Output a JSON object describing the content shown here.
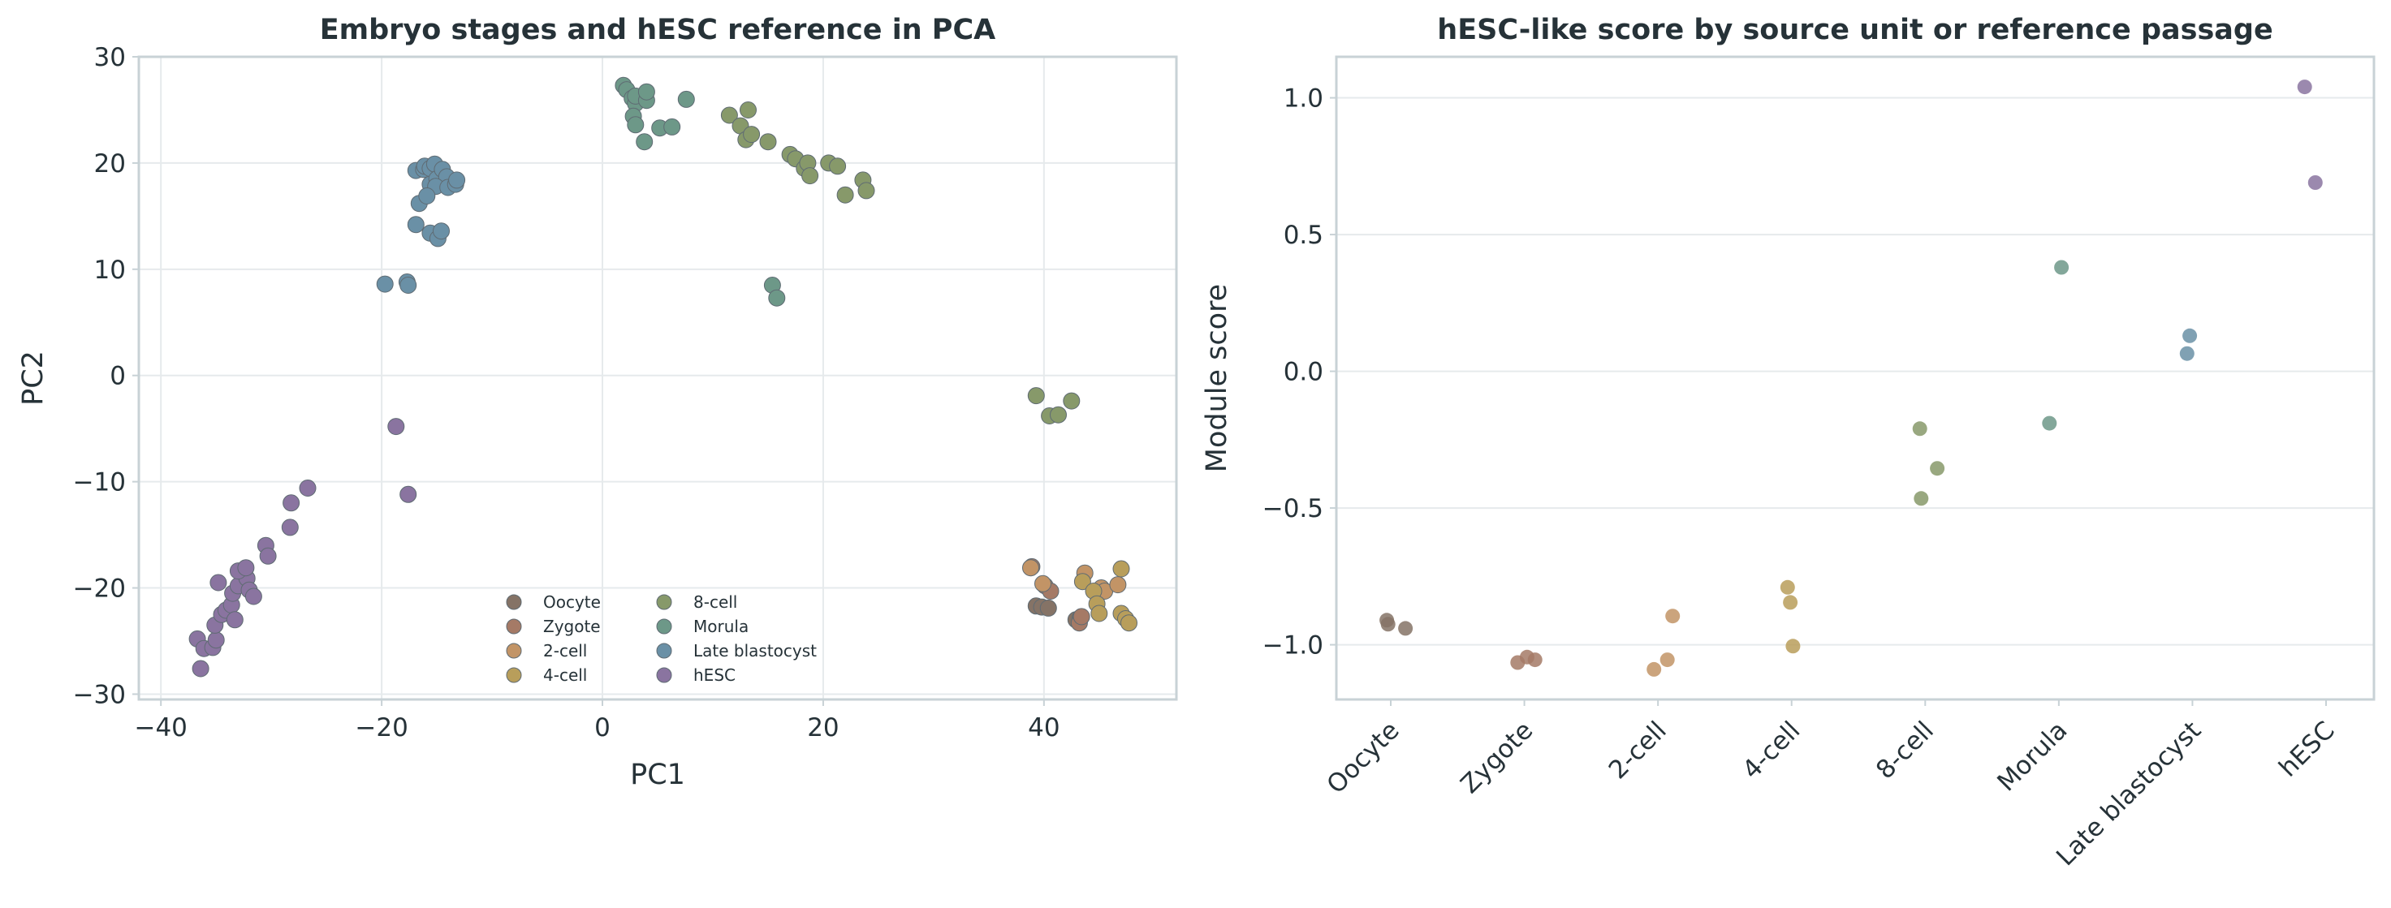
{
  "chart_data": [
    {
      "type": "scatter",
      "title": "Embryo stages and hESC reference in PCA",
      "xlabel": "PC1",
      "ylabel": "PC2",
      "xlim": [
        -42,
        52
      ],
      "ylim": [
        -30.5,
        30
      ],
      "xticks": [
        -40,
        -20,
        0,
        20,
        40
      ],
      "yticks": [
        -30,
        -20,
        -10,
        0,
        10,
        20,
        30
      ],
      "xtick_labels": [
        "−40",
        "−20",
        "0",
        "20",
        "40"
      ],
      "ytick_labels": [
        "−30",
        "−20",
        "−10",
        "0",
        "10",
        "20",
        "30"
      ],
      "grid": true,
      "legend_position": "lower-center",
      "series": [
        {
          "name": "Oocyte",
          "color": "#857366",
          "points": [
            [
              39.3,
              -21.7
            ],
            [
              39.8,
              -21.8
            ],
            [
              40.4,
              -21.9
            ],
            [
              42.9,
              -23
            ],
            [
              43.3,
              -22.8
            ]
          ]
        },
        {
          "name": "Zygote",
          "color": "#a57a66",
          "points": [
            [
              38.9,
              -18
            ],
            [
              40.1,
              -19.8
            ],
            [
              40.6,
              -20.3
            ],
            [
              43.2,
              -23.3
            ],
            [
              43.4,
              -22.7
            ]
          ]
        },
        {
          "name": "2-cell",
          "color": "#c29466",
          "points": [
            [
              38.8,
              -18.1
            ],
            [
              39.9,
              -19.6
            ],
            [
              43.7,
              -18.6
            ],
            [
              45.2,
              -20
            ],
            [
              45.5,
              -20.3
            ],
            [
              46.7,
              -19.7
            ]
          ]
        },
        {
          "name": "4-cell",
          "color": "#b89e5b",
          "points": [
            [
              43.5,
              -19.4
            ],
            [
              44.5,
              -20.3
            ],
            [
              44.8,
              -21.5
            ],
            [
              45,
              -22.4
            ],
            [
              47,
              -18.2
            ],
            [
              47,
              -22.4
            ],
            [
              47.4,
              -22.9
            ],
            [
              47.7,
              -23.3
            ]
          ]
        },
        {
          "name": "8-cell",
          "color": "#87996a",
          "points": [
            [
              39.3,
              -1.9
            ],
            [
              40.5,
              -3.8
            ],
            [
              41.3,
              -3.7
            ],
            [
              42.5,
              -2.4
            ],
            [
              11.5,
              24.5
            ],
            [
              12.5,
              23.5
            ],
            [
              13,
              22.2
            ],
            [
              13.5,
              22.7
            ],
            [
              13.2,
              25
            ],
            [
              15,
              22
            ],
            [
              17,
              20.8
            ],
            [
              17.5,
              20.4
            ],
            [
              18.3,
              19.5
            ],
            [
              18.6,
              20
            ],
            [
              18.8,
              18.8
            ],
            [
              20.5,
              20
            ],
            [
              21.3,
              19.7
            ],
            [
              22,
              17
            ],
            [
              23.6,
              18.4
            ],
            [
              23.9,
              17.4
            ]
          ]
        },
        {
          "name": "Morula",
          "color": "#6d9888",
          "points": [
            [
              1.9,
              27.3
            ],
            [
              2.2,
              26.9
            ],
            [
              2.7,
              26.1
            ],
            [
              3,
              25.6
            ],
            [
              3,
              26.3
            ],
            [
              2.8,
              24.4
            ],
            [
              3,
              23.6
            ],
            [
              4,
              25.9
            ],
            [
              4,
              26.7
            ],
            [
              3.8,
              22
            ],
            [
              5.2,
              23.3
            ],
            [
              6.3,
              23.4
            ],
            [
              7.6,
              26
            ],
            [
              15.4,
              8.5
            ],
            [
              15.8,
              7.3
            ]
          ]
        },
        {
          "name": "Late blastocyst",
          "color": "#6a90a6",
          "points": [
            [
              -19.7,
              8.6
            ],
            [
              -17.7,
              8.8
            ],
            [
              -17.6,
              8.5
            ],
            [
              -16.9,
              19.3
            ],
            [
              -16.2,
              19.4
            ],
            [
              -16.1,
              19.7
            ],
            [
              -15.6,
              19.5
            ],
            [
              -15.2,
              19.9
            ],
            [
              -15.6,
              18
            ],
            [
              -15,
              18.5
            ],
            [
              -14.5,
              19.4
            ],
            [
              -14.1,
              18.7
            ],
            [
              -15.1,
              17.8
            ],
            [
              -14,
              17.7
            ],
            [
              -13.3,
              18
            ],
            [
              -13.2,
              18.4
            ],
            [
              -16.6,
              16.2
            ],
            [
              -15.9,
              16.9
            ],
            [
              -16.9,
              14.2
            ],
            [
              -15.6,
              13.4
            ],
            [
              -14.9,
              12.9
            ],
            [
              -14.6,
              13.6
            ]
          ]
        },
        {
          "name": "hESC",
          "color": "#8a74a0",
          "points": [
            [
              -18.7,
              -4.8
            ],
            [
              -17.6,
              -11.2
            ],
            [
              -36.7,
              -24.8
            ],
            [
              -36.4,
              -27.6
            ],
            [
              -36.1,
              -25.7
            ],
            [
              -35.3,
              -25.6
            ],
            [
              -35,
              -24.9
            ],
            [
              -35.1,
              -23.5
            ],
            [
              -34.5,
              -22.5
            ],
            [
              -34.1,
              -22.1
            ],
            [
              -33.6,
              -21.6
            ],
            [
              -34.8,
              -19.5
            ],
            [
              -33.5,
              -20.5
            ],
            [
              -33,
              -19.8
            ],
            [
              -32.2,
              -19.1
            ],
            [
              -33,
              -18.4
            ],
            [
              -32.3,
              -18.1
            ],
            [
              -32,
              -20.2
            ],
            [
              -31.6,
              -20.8
            ],
            [
              -33.3,
              -23
            ],
            [
              -30.5,
              -16
            ],
            [
              -30.3,
              -17
            ],
            [
              -28.3,
              -14.3
            ],
            [
              -28.2,
              -12
            ],
            [
              -26.7,
              -10.6
            ]
          ]
        }
      ]
    },
    {
      "type": "scatter",
      "title": "hESC-like score by source unit or reference passage",
      "xlabel": "",
      "ylabel": "Module score",
      "categories": [
        "Oocyte",
        "Zygote",
        "2-cell",
        "4-cell",
        "8-cell",
        "Morula",
        "Late blastocyst",
        "hESC"
      ],
      "ylim": [
        -1.2,
        1.15
      ],
      "yticks": [
        -1.0,
        -0.5,
        0.0,
        0.5,
        1.0
      ],
      "ytick_labels": [
        "−1.0",
        "−0.5",
        "0.0",
        "0.5",
        "1.0"
      ],
      "grid": true,
      "series": [
        {
          "name": "Oocyte",
          "color": "#857366",
          "points": [
            [
              -0.03,
              -0.91
            ],
            [
              -0.02,
              -0.925
            ],
            [
              0.11,
              -0.94
            ]
          ]
        },
        {
          "name": "Zygote",
          "color": "#a57a66",
          "points": [
            [
              -0.05,
              -1.065
            ],
            [
              0.02,
              -1.045
            ],
            [
              0.08,
              -1.055
            ]
          ]
        },
        {
          "name": "2-cell",
          "color": "#c29466",
          "points": [
            [
              -0.03,
              -1.09
            ],
            [
              0.07,
              -1.055
            ],
            [
              0.11,
              -0.895
            ]
          ]
        },
        {
          "name": "4-cell",
          "color": "#b89e5b",
          "points": [
            [
              -0.03,
              -0.79
            ],
            [
              -0.01,
              -0.845
            ],
            [
              0.01,
              -1.005
            ]
          ]
        },
        {
          "name": "8-cell",
          "color": "#87996a",
          "points": [
            [
              -0.04,
              -0.21
            ],
            [
              -0.03,
              -0.465
            ],
            [
              0.09,
              -0.355
            ]
          ]
        },
        {
          "name": "Morula",
          "color": "#6d9888",
          "points": [
            [
              -0.07,
              -0.19
            ],
            [
              0.02,
              0.38
            ]
          ]
        },
        {
          "name": "Late blastocyst",
          "color": "#6a90a6",
          "points": [
            [
              -0.04,
              0.065
            ],
            [
              -0.02,
              0.13
            ]
          ]
        },
        {
          "name": "hESC",
          "color": "#8a74a0",
          "points": [
            [
              -0.16,
              1.04
            ],
            [
              -0.08,
              0.69
            ]
          ]
        }
      ]
    }
  ]
}
